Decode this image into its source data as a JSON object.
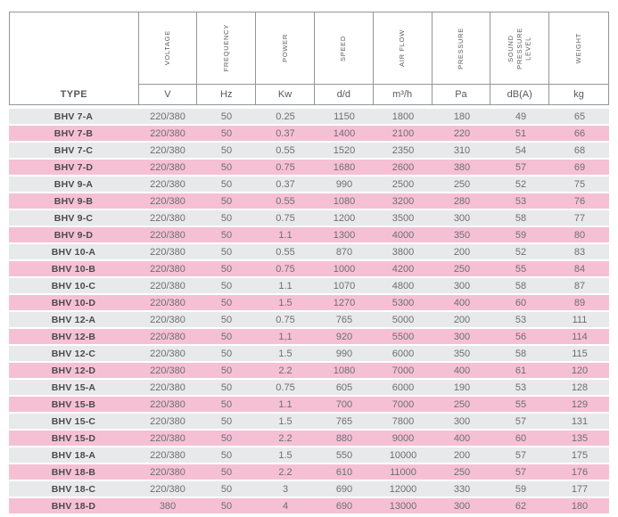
{
  "colors": {
    "row_gray": "#e8e9ea",
    "row_pink": "#f6c0d4",
    "border": "#939598",
    "header_text": "#58595b",
    "type_text": "#4a4a4c",
    "value_text": "#6d6e71"
  },
  "table": {
    "type_header": "TYPE",
    "columns": [
      {
        "label": "VOLTAGE",
        "unit": "V"
      },
      {
        "label": "FREQUENCY",
        "unit": "Hz"
      },
      {
        "label": "POWER",
        "unit": "Kw"
      },
      {
        "label": "SPEED",
        "unit": "d/d"
      },
      {
        "label": "AIR FLOW",
        "unit": "m³/h"
      },
      {
        "label": "PRESSURE",
        "unit": "Pa"
      },
      {
        "label": "SOUND\nPRESSURE\nLEVEL",
        "unit": "dB(A)"
      },
      {
        "label": "WEIGHT",
        "unit": "kg"
      }
    ],
    "rows": [
      {
        "type": "BHV 7-A",
        "values": [
          "220/380",
          "50",
          "0.25",
          "1150",
          "1800",
          "180",
          "49",
          "65"
        ]
      },
      {
        "type": "BHV 7-B",
        "values": [
          "220/380",
          "50",
          "0.37",
          "1400",
          "2100",
          "220",
          "51",
          "66"
        ]
      },
      {
        "type": "BHV 7-C",
        "values": [
          "220/380",
          "50",
          "0.55",
          "1520",
          "2350",
          "310",
          "54",
          "68"
        ]
      },
      {
        "type": "BHV 7-D",
        "values": [
          "220/380",
          "50",
          "0.75",
          "1680",
          "2600",
          "380",
          "57",
          "69"
        ]
      },
      {
        "type": "BHV 9-A",
        "values": [
          "220/380",
          "50",
          "0.37",
          "990",
          "2500",
          "250",
          "52",
          "75"
        ]
      },
      {
        "type": "BHV 9-B",
        "values": [
          "220/380",
          "50",
          "0.55",
          "1080",
          "3200",
          "280",
          "53",
          "76"
        ]
      },
      {
        "type": "BHV 9-C",
        "values": [
          "220/380",
          "50",
          "0.75",
          "1200",
          "3500",
          "300",
          "58",
          "77"
        ]
      },
      {
        "type": "BHV 9-D",
        "values": [
          "220/380",
          "50",
          "1.1",
          "1300",
          "4000",
          "350",
          "59",
          "80"
        ]
      },
      {
        "type": "BHV 10-A",
        "values": [
          "220/380",
          "50",
          "0.55",
          "870",
          "3800",
          "200",
          "52",
          "83"
        ]
      },
      {
        "type": "BHV 10-B",
        "values": [
          "220/380",
          "50",
          "0.75",
          "1000",
          "4200",
          "250",
          "55",
          "84"
        ]
      },
      {
        "type": "BHV 10-C",
        "values": [
          "220/380",
          "50",
          "1.1",
          "1070",
          "4800",
          "300",
          "58",
          "87"
        ]
      },
      {
        "type": "BHV 10-D",
        "values": [
          "220/380",
          "50",
          "1.5",
          "1270",
          "5300",
          "400",
          "60",
          "89"
        ]
      },
      {
        "type": "BHV 12-A",
        "values": [
          "220/380",
          "50",
          "0.75",
          "765",
          "5000",
          "200",
          "53",
          "111"
        ]
      },
      {
        "type": "BHV 12-B",
        "values": [
          "220/380",
          "50",
          "1,1",
          "920",
          "5500",
          "300",
          "56",
          "114"
        ]
      },
      {
        "type": "BHV 12-C",
        "values": [
          "220/380",
          "50",
          "1.5",
          "990",
          "6000",
          "350",
          "58",
          "115"
        ]
      },
      {
        "type": "BHV 12-D",
        "values": [
          "220/380",
          "50",
          "2.2",
          "1080",
          "7000",
          "400",
          "61",
          "120"
        ]
      },
      {
        "type": "BHV 15-A",
        "values": [
          "220/380",
          "50",
          "0.75",
          "605",
          "6000",
          "190",
          "53",
          "128"
        ]
      },
      {
        "type": "BHV 15-B",
        "values": [
          "220/380",
          "50",
          "1.1",
          "700",
          "7000",
          "250",
          "55",
          "129"
        ]
      },
      {
        "type": "BHV 15-C",
        "values": [
          "220/380",
          "50",
          "1.5",
          "765",
          "7800",
          "300",
          "57",
          "131"
        ]
      },
      {
        "type": "BHV 15-D",
        "values": [
          "220/380",
          "50",
          "2.2",
          "880",
          "9000",
          "400",
          "60",
          "135"
        ]
      },
      {
        "type": "BHV 18-A",
        "values": [
          "220/380",
          "50",
          "1.5",
          "550",
          "10000",
          "200",
          "57",
          "175"
        ]
      },
      {
        "type": "BHV 18-B",
        "values": [
          "220/380",
          "50",
          "2.2",
          "610",
          "11000",
          "250",
          "57",
          "176"
        ]
      },
      {
        "type": "BHV 18-C",
        "values": [
          "220/380",
          "50",
          "3",
          "690",
          "12000",
          "330",
          "59",
          "177"
        ]
      },
      {
        "type": "BHV 18-D",
        "values": [
          "380",
          "50",
          "4",
          "690",
          "13000",
          "300",
          "62",
          "180"
        ]
      }
    ]
  }
}
